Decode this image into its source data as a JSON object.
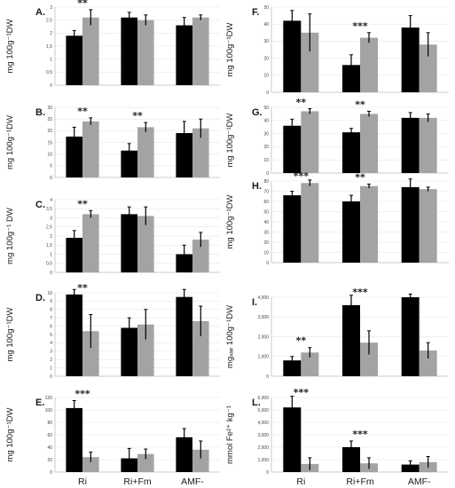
{
  "figure": {
    "x_categories": [
      "Ri",
      "Ri+Fm",
      "AMF-"
    ]
  },
  "colors": {
    "series_a": "#000000",
    "series_b": "#a3a3a3",
    "axis": "#bfbfbf",
    "grid": "#d9d9d9"
  },
  "chart_data": [
    {
      "id": "A",
      "type": "bar",
      "title": "A.",
      "ylabel": "mg 100g⁻¹DW",
      "categories": [
        "Ri",
        "Ri+Fm",
        "AMF-"
      ],
      "ylim": [
        0,
        3.0
      ],
      "yticks": [
        "0",
        "0,5",
        "1",
        "1,5",
        "2",
        "2,5",
        "3"
      ],
      "series": [
        {
          "values": [
            1.9,
            2.6,
            2.3
          ],
          "errors": [
            0.2,
            0.2,
            0.3
          ]
        },
        {
          "values": [
            2.6,
            2.5,
            2.6
          ],
          "errors": [
            0.3,
            0.2,
            0.1
          ]
        }
      ],
      "significance": [
        "**",
        "",
        ""
      ]
    },
    {
      "id": "B",
      "type": "bar",
      "title": "B.",
      "ylabel": "mg 100g⁻¹DW",
      "categories": [
        "Ri",
        "Ri+Fm",
        "AMF-"
      ],
      "ylim": [
        0,
        30
      ],
      "yticks": [
        "0",
        "5",
        "10",
        "15",
        "20",
        "25",
        "30"
      ],
      "series": [
        {
          "values": [
            17.5,
            11.5,
            19
          ],
          "errors": [
            4,
            3,
            5
          ]
        },
        {
          "values": [
            24,
            21.5,
            21
          ],
          "errors": [
            1.5,
            2,
            4
          ]
        }
      ],
      "significance": [
        "**",
        "**",
        ""
      ]
    },
    {
      "id": "C",
      "type": "bar",
      "title": "C.",
      "ylabel": "mg 100g⁻¹ DW",
      "categories": [
        "Ri",
        "Ri+Fm",
        "AMF-"
      ],
      "ylim": [
        0,
        4.0
      ],
      "yticks": [
        "0",
        "0,5",
        "1",
        "1,5",
        "2",
        "2,5",
        "3",
        "3,5",
        "4"
      ],
      "series": [
        {
          "values": [
            1.9,
            3.2,
            1.0
          ],
          "errors": [
            0.4,
            0.4,
            0.5
          ]
        },
        {
          "values": [
            3.2,
            3.1,
            1.8
          ],
          "errors": [
            0.2,
            0.5,
            0.4
          ]
        }
      ],
      "significance": [
        "**",
        "",
        ""
      ]
    },
    {
      "id": "D",
      "type": "bar",
      "title": "D.",
      "ylabel": "mg 100g⁻¹DW",
      "categories": [
        "Ri",
        "Ri+Fm",
        "AMF-"
      ],
      "ylim": [
        0,
        10
      ],
      "yticks": [
        "0",
        "1",
        "2",
        "3",
        "4",
        "5",
        "6",
        "7",
        "8",
        "9",
        "10"
      ],
      "series": [
        {
          "values": [
            9.8,
            5.8,
            9.5
          ],
          "errors": [
            1,
            1.2,
            1.5
          ]
        },
        {
          "values": [
            5.4,
            6.2,
            6.6
          ],
          "errors": [
            2,
            1.8,
            1.8
          ]
        }
      ],
      "significance": [
        "**",
        "",
        ""
      ]
    },
    {
      "id": "E",
      "type": "bar",
      "title": "E.",
      "ylabel": "mg 100g⁻¹DW",
      "categories": [
        "Ri",
        "Ri+Fm",
        "AMF-"
      ],
      "ylim": [
        0,
        120
      ],
      "yticks": [
        "0",
        "20",
        "40",
        "60",
        "80",
        "100",
        "120"
      ],
      "series": [
        {
          "values": [
            103,
            22,
            56
          ],
          "errors": [
            12,
            16,
            14
          ]
        },
        {
          "values": [
            24,
            29,
            36
          ],
          "errors": [
            8,
            8,
            14
          ]
        }
      ],
      "significance": [
        "***",
        "",
        ""
      ]
    },
    {
      "id": "F",
      "type": "bar",
      "title": "F.",
      "ylabel": "mg 100g⁻¹DW",
      "categories": [
        "Ri",
        "Ri+Fm",
        "AMF-"
      ],
      "ylim": [
        0,
        50
      ],
      "yticks": [
        "0",
        "10",
        "20",
        "30",
        "40",
        "50"
      ],
      "series": [
        {
          "values": [
            42,
            16,
            38
          ],
          "errors": [
            6,
            6,
            7
          ]
        },
        {
          "values": [
            35,
            32,
            28
          ],
          "errors": [
            11,
            3,
            7
          ]
        }
      ],
      "significance": [
        "",
        "***",
        ""
      ]
    },
    {
      "id": "G",
      "type": "bar",
      "title": "G.",
      "ylabel": "mg 100g⁻¹DW",
      "categories": [
        "Ri",
        "Ri+Fm",
        "AMF-"
      ],
      "ylim": [
        0,
        50
      ],
      "yticks": [
        "0",
        "10",
        "20",
        "30",
        "40",
        "50"
      ],
      "series": [
        {
          "values": [
            36,
            31,
            42
          ],
          "errors": [
            5,
            3,
            4
          ]
        },
        {
          "values": [
            47,
            45,
            42
          ],
          "errors": [
            2,
            2,
            3
          ]
        }
      ],
      "significance": [
        "**",
        "**",
        ""
      ]
    },
    {
      "id": "H",
      "type": "bar",
      "title": "H.",
      "ylabel": "mg 100g⁻¹DW",
      "categories": [
        "Ri",
        "Ri+Fm",
        "AMF-"
      ],
      "ylim": [
        0,
        80
      ],
      "yticks": [
        "0",
        "10",
        "20",
        "30",
        "40",
        "50",
        "60",
        "70",
        "80"
      ],
      "series": [
        {
          "values": [
            66,
            60,
            74
          ],
          "errors": [
            4,
            6,
            8
          ]
        },
        {
          "values": [
            78,
            75,
            72
          ],
          "errors": [
            3,
            2,
            2
          ]
        }
      ],
      "significance": [
        "***",
        "**",
        ""
      ]
    },
    {
      "id": "I",
      "type": "bar",
      "title": "I.",
      "ylabel": "mgₓₐₑ 100g⁻¹DW",
      "categories": [
        "Ri",
        "Ri+Fm",
        "AMF-"
      ],
      "ylim": [
        0,
        4000
      ],
      "yticks": [
        "0",
        "1,000",
        "2,000",
        "3,000",
        "4,000"
      ],
      "series": [
        {
          "values": [
            800,
            3600,
            4300
          ],
          "errors": [
            200,
            500,
            300
          ]
        },
        {
          "values": [
            1200,
            1700,
            1300
          ],
          "errors": [
            250,
            600,
            400
          ]
        }
      ],
      "significance": [
        "**",
        "***",
        ""
      ]
    },
    {
      "id": "L",
      "type": "bar",
      "title": "L.",
      "ylabel": "mmol Fe²⁺ kg⁻¹",
      "categories": [
        "Ri",
        "Ri+Fm",
        "AMF-"
      ],
      "ylim": [
        0,
        6000
      ],
      "yticks": [
        "0",
        "1,000",
        "2,000",
        "3,000",
        "4,000",
        "5,000",
        "6,000"
      ],
      "series": [
        {
          "values": [
            5200,
            2000,
            600
          ],
          "errors": [
            900,
            500,
            300
          ]
        },
        {
          "values": [
            650,
            700,
            800
          ],
          "errors": [
            500,
            450,
            450
          ]
        }
      ],
      "significance": [
        "***",
        "***",
        ""
      ]
    }
  ]
}
